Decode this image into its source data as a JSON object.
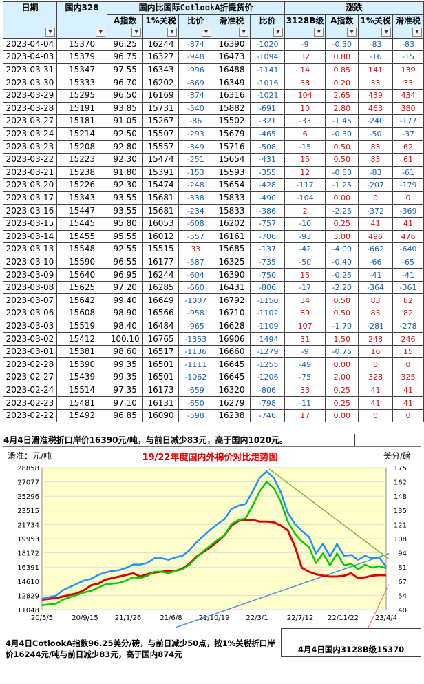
{
  "table": {
    "group_title": "国内比国际CotlookA折提货价",
    "change_title": "涨跌",
    "headers": [
      "日期",
      "国内328",
      "A指数",
      "1%关税",
      "比价",
      "滑准税",
      "比价",
      "3128B级",
      "A指数",
      "1%关税",
      "滑准税"
    ],
    "rows": [
      [
        "2023-04-04",
        "15370",
        "96.25",
        "16244",
        "-874",
        "16390",
        "-1020",
        "-9",
        "-0.50",
        "-83",
        "-83"
      ],
      [
        "2023-04-03",
        "15379",
        "96.75",
        "16327",
        "-948",
        "16473",
        "-1094",
        "32",
        "0.80",
        "-16",
        "-15"
      ],
      [
        "2023-03-31",
        "15347",
        "97.55",
        "16343",
        "-996",
        "16488",
        "-1141",
        "14",
        "0.85",
        "141",
        "139"
      ],
      [
        "2023-03-30",
        "15333",
        "96.70",
        "16202",
        "-869",
        "16349",
        "-1016",
        "38",
        "0.20",
        "33",
        "33"
      ],
      [
        "2023-03-29",
        "15295",
        "96.50",
        "16169",
        "-874",
        "16316",
        "-1021",
        "104",
        "2.65",
        "439",
        "434"
      ],
      [
        "2023-03-28",
        "15191",
        "93.85",
        "15731",
        "-540",
        "15882",
        "-691",
        "10",
        "2.80",
        "463",
        "380"
      ],
      [
        "2023-03-27",
        "15181",
        "91.05",
        "15267",
        "-86",
        "15502",
        "-321",
        "-33",
        "-1.45",
        "-240",
        "-177"
      ],
      [
        "2023-03-24",
        "15214",
        "92.50",
        "15507",
        "-293",
        "15679",
        "-465",
        "6",
        "-0.30",
        "-50",
        "-37"
      ],
      [
        "2023-03-23",
        "15208",
        "92.80",
        "15557",
        "-349",
        "15716",
        "-508",
        "-15",
        "0.50",
        "83",
        "62"
      ],
      [
        "2023-03-22",
        "15223",
        "92.30",
        "15474",
        "-251",
        "15654",
        "-431",
        "15",
        "0.50",
        "83",
        "61"
      ],
      [
        "2023-03-21",
        "15238",
        "91.80",
        "15391",
        "-153",
        "15593",
        "-355",
        "12",
        "-0.50",
        "-83",
        "-61"
      ],
      [
        "2023-03-20",
        "15226",
        "92.30",
        "15474",
        "-248",
        "15654",
        "-428",
        "-117",
        "-1.25",
        "-207",
        "-179"
      ],
      [
        "2023-03-17",
        "15343",
        "93.55",
        "15681",
        "-338",
        "15833",
        "-490",
        "-104",
        "0.00",
        "0",
        "0"
      ],
      [
        "2023-03-16",
        "15447",
        "93.55",
        "15681",
        "-234",
        "15833",
        "-386",
        "2",
        "-2.25",
        "-372",
        "-369"
      ],
      [
        "2023-03-15",
        "15445",
        "95.80",
        "16053",
        "-608",
        "16202",
        "-757",
        "-10",
        "0.25",
        "41",
        "41"
      ],
      [
        "2023-03-14",
        "15455",
        "95.55",
        "16012",
        "-557",
        "16161",
        "-706",
        "-93",
        "3.00",
        "496",
        "476"
      ],
      [
        "2023-03-13",
        "15548",
        "92.55",
        "15515",
        "33",
        "15685",
        "-137",
        "-42",
        "-4.00",
        "-662",
        "-640"
      ],
      [
        "2023-03-10",
        "15590",
        "96.55",
        "16177",
        "-587",
        "16325",
        "-735",
        "-50",
        "-0.40",
        "-66",
        "-65"
      ],
      [
        "2023-03-09",
        "15640",
        "96.95",
        "16244",
        "-604",
        "16390",
        "-750",
        "15",
        "-0.25",
        "-41",
        "-41"
      ],
      [
        "2023-03-08",
        "15625",
        "97.20",
        "16285",
        "-660",
        "16431",
        "-806",
        "-17",
        "-2.20",
        "-364",
        "-361"
      ],
      [
        "2023-03-07",
        "15642",
        "99.40",
        "16649",
        "-1007",
        "16792",
        "-1150",
        "34",
        "0.50",
        "83",
        "82"
      ],
      [
        "2023-03-06",
        "15608",
        "98.90",
        "16566",
        "-958",
        "16710",
        "-1102",
        "89",
        "0.50",
        "83",
        "82"
      ],
      [
        "2023-03-03",
        "15519",
        "98.40",
        "16484",
        "-965",
        "16628",
        "-1109",
        "107",
        "-1.70",
        "-281",
        "-278"
      ],
      [
        "2023-03-02",
        "15412",
        "100.10",
        "16765",
        "-1353",
        "16906",
        "-1494",
        "31",
        "1.50",
        "248",
        "246"
      ],
      [
        "2023-03-01",
        "15381",
        "98.60",
        "16517",
        "-1136",
        "16660",
        "-1279",
        "-9",
        "-0.75",
        "16",
        "15"
      ],
      [
        "2023-02-28",
        "15390",
        "99.35",
        "16501",
        "-1111",
        "16645",
        "-1255",
        "-49",
        "0.00",
        "0",
        "0"
      ],
      [
        "2023-02-27",
        "15439",
        "99.35",
        "16501",
        "-1062",
        "16645",
        "-1206",
        "-75",
        "2.00",
        "328",
        "325"
      ],
      [
        "2023-02-24",
        "15514",
        "97.35",
        "16173",
        "-659",
        "16320",
        "-806",
        "33",
        "0.25",
        "41",
        "41"
      ],
      [
        "2023-02-23",
        "15481",
        "97.10",
        "16131",
        "-650",
        "16279",
        "-798",
        "-11",
        "0.25",
        "41",
        "41"
      ],
      [
        "2023-02-22",
        "15492",
        "96.85",
        "16090",
        "-598",
        "16238",
        "-746",
        "17",
        "0.00",
        "0",
        "0"
      ]
    ]
  },
  "note_top": "4月4日滑准税折口岸价16390元/吨，与前日减少83元，高于国内1020元。",
  "note_bottom": "4月4日CotlookA指数96.25美分/磅，与前日减少50点，按1%关税折口岸价16244元/吨与前日减少83元，高于国内874元",
  "note_right": "4月4日国内3128B级15370",
  "chart_data": {
    "type": "line",
    "title": "19/22年度国内外棉价对比走势图",
    "ylabel_left": "滑准：元/吨",
    "ylabel_right": "美分/磅",
    "y_left_ticks": [
      "28858",
      "27077",
      "25296",
      "23515",
      "21734",
      "19953",
      "18172",
      "16391",
      "14610",
      "12829",
      "11048"
    ],
    "y_right_ticks": [
      "175",
      "162",
      "148",
      "135",
      "121",
      "108",
      "94",
      "81",
      "67",
      "54",
      "40"
    ],
    "x_ticks": [
      "20/5/5",
      "20/9/15",
      "21/1/26",
      "21/6/8",
      "21/10/19",
      "22/3/1",
      "22/7/12",
      "22/11/22",
      "23/4/4"
    ],
    "ylim_left": [
      11048,
      28858
    ],
    "series": [
      {
        "name": "",
        "color": "#e00000",
        "values": [
          12300,
          12400,
          12500,
          12700,
          12900,
          13100,
          13500,
          14100,
          14300,
          14800,
          15000,
          15200,
          15400,
          15600,
          15200,
          15500,
          15700,
          15800,
          15900,
          15900,
          16200,
          16800,
          17700,
          18300,
          18900,
          19600,
          20400,
          21600,
          22200,
          22300,
          22300,
          22100,
          22100,
          22000,
          21600,
          21000,
          19000,
          16300,
          15800,
          15500,
          15300,
          15200,
          15200,
          15300,
          15600,
          15000,
          15100,
          15300,
          15400,
          15370
        ]
      },
      {
        "name": "",
        "color": "#00cc00",
        "values": [
          11600,
          11700,
          11800,
          12300,
          12600,
          12900,
          13200,
          13400,
          13800,
          14200,
          14300,
          14400,
          14700,
          15100,
          15000,
          15300,
          15800,
          15800,
          15600,
          15900,
          16100,
          16700,
          17600,
          18400,
          19100,
          19800,
          20400,
          21800,
          22300,
          22500,
          24100,
          25900,
          27100,
          26300,
          24600,
          22100,
          20600,
          19600,
          18900,
          16900,
          18100,
          16600,
          18100,
          16600,
          16800,
          16100,
          16700,
          16300,
          16500,
          16244
        ]
      },
      {
        "name": "",
        "color": "#1e90ff",
        "values": [
          12400,
          12600,
          12800,
          13500,
          13900,
          14300,
          14700,
          14900,
          15400,
          15700,
          15900,
          16000,
          16300,
          16700,
          16700,
          16900,
          17500,
          17500,
          17300,
          17600,
          17800,
          18500,
          19500,
          20300,
          21100,
          21800,
          22400,
          23700,
          24100,
          24300,
          25900,
          27600,
          28400,
          27600,
          25800,
          23200,
          21800,
          20900,
          20200,
          18100,
          19300,
          17700,
          19300,
          17800,
          17900,
          17300,
          17800,
          17500,
          17600,
          16390
        ]
      }
    ]
  },
  "colors": {
    "header_bg": "#d9f0ff",
    "negative": "#1a5fb4",
    "positive": "#d01010",
    "title_red": "#e00000"
  }
}
